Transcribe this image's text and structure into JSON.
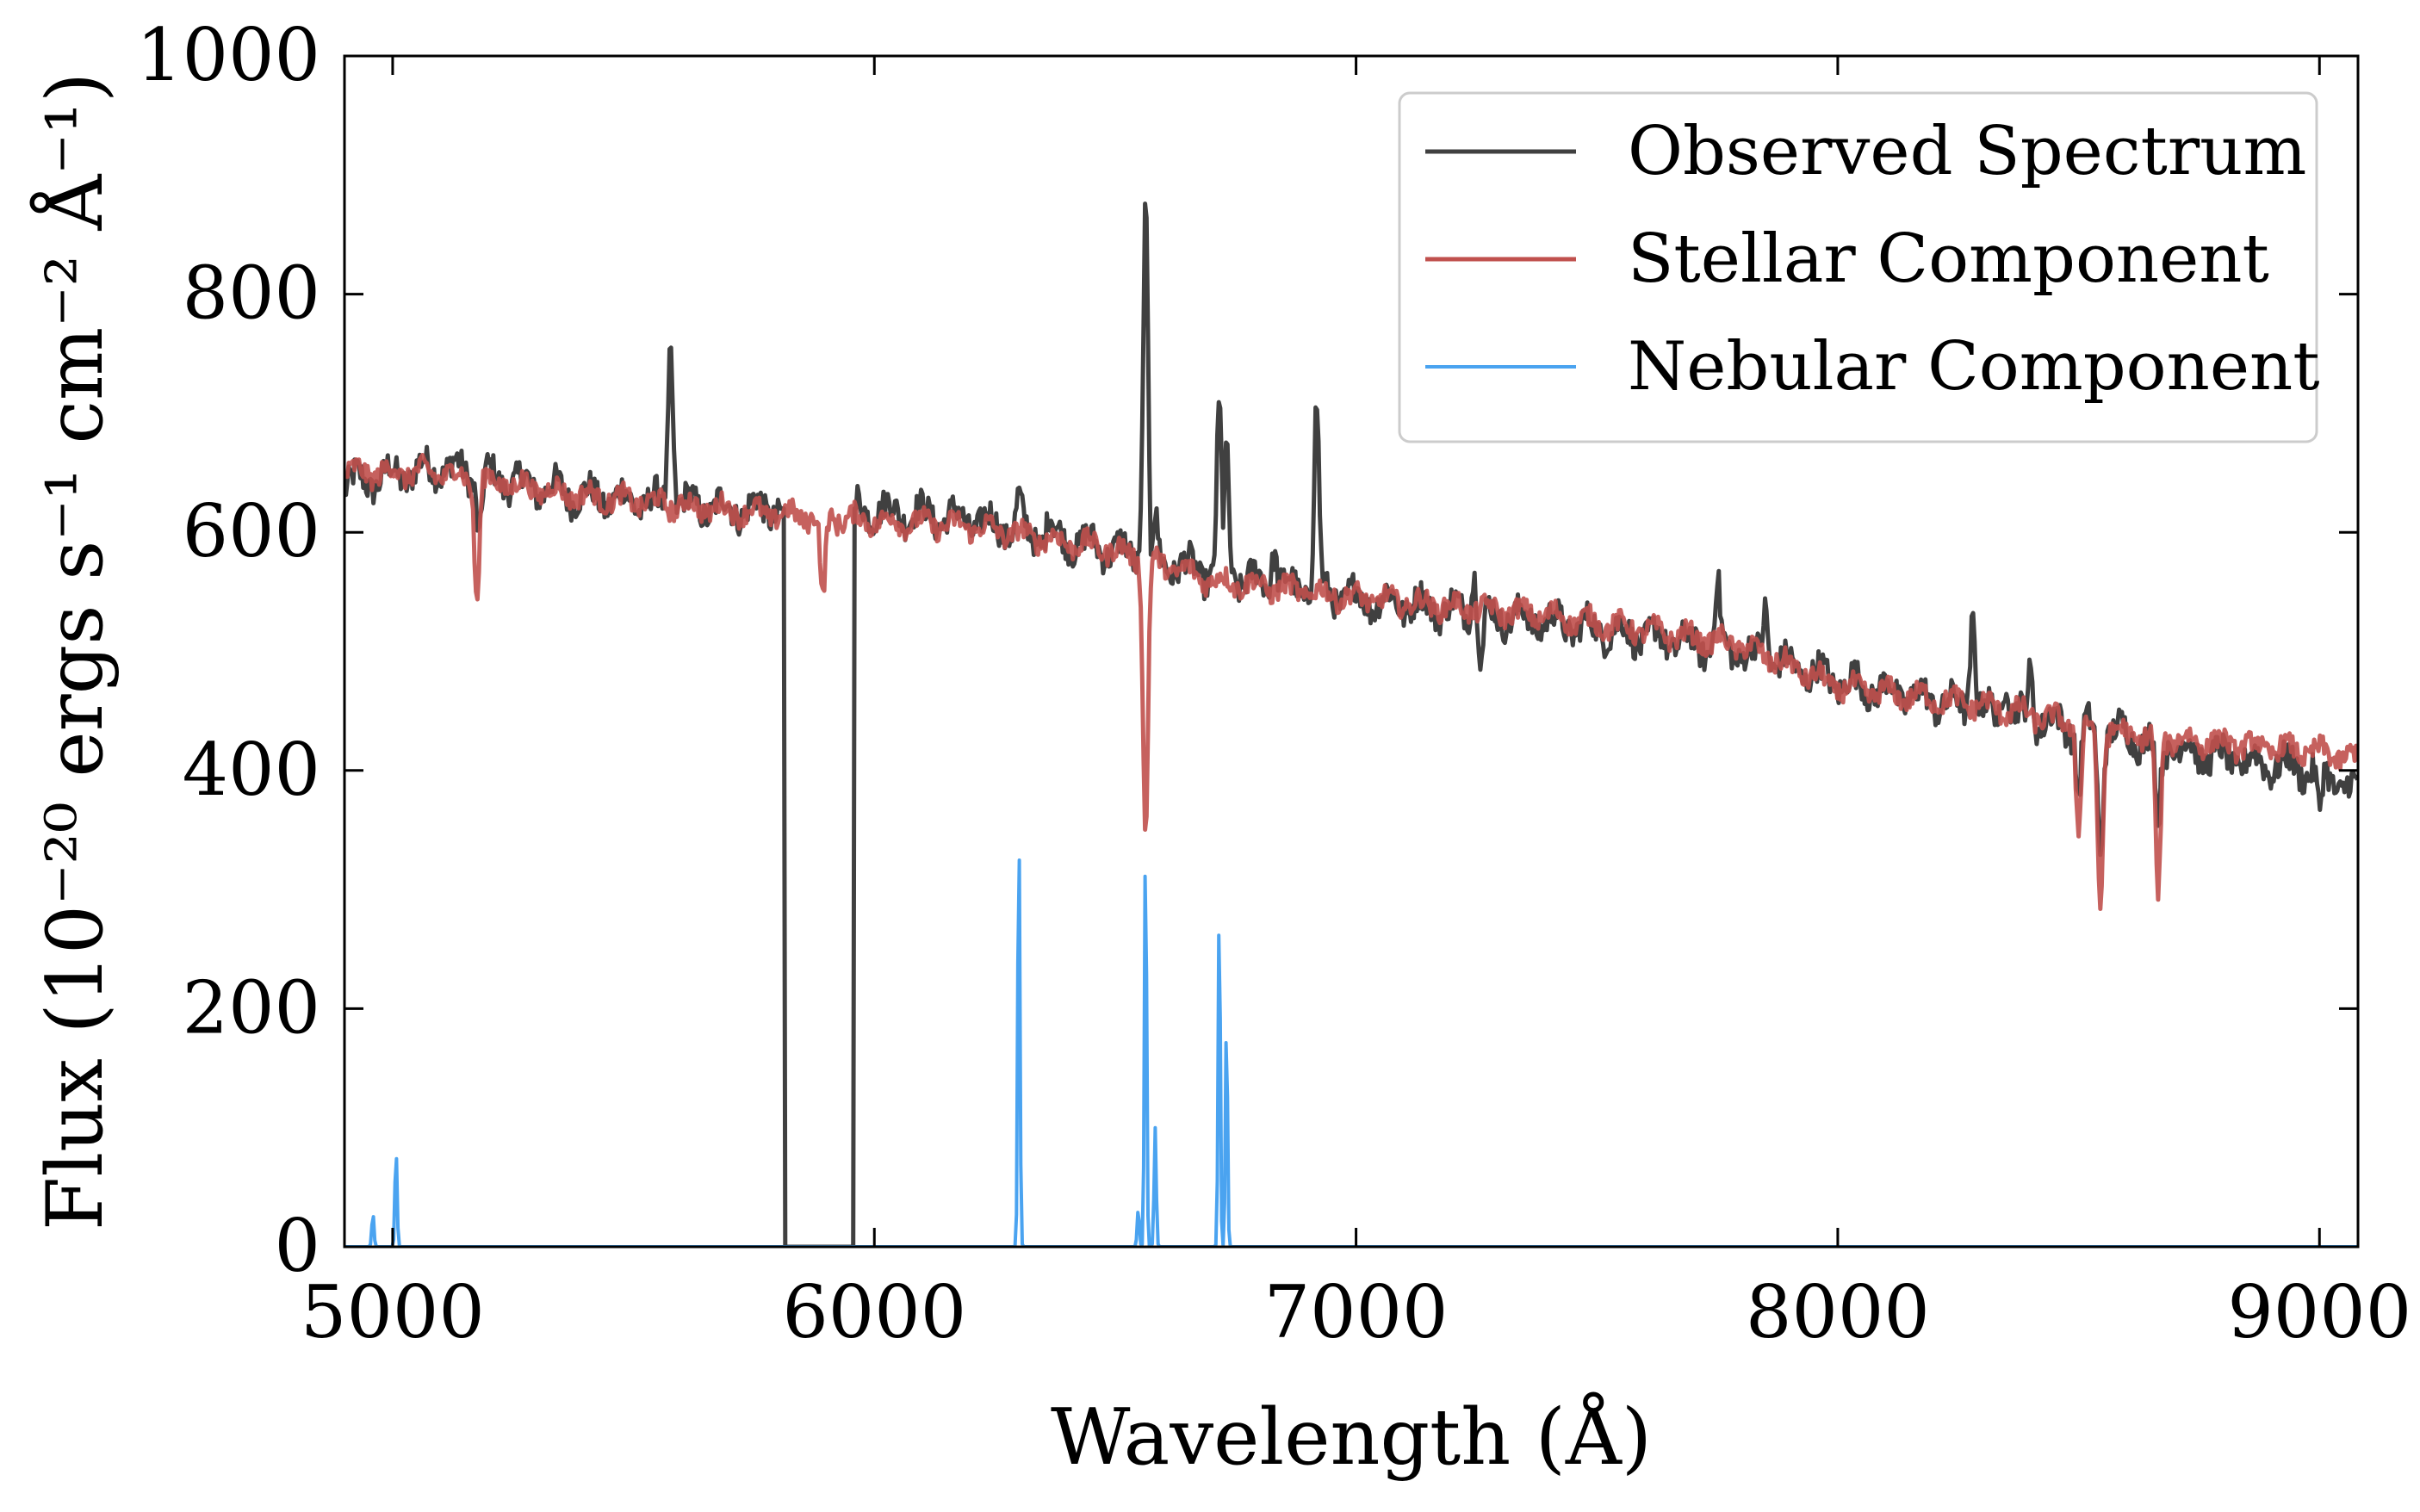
{
  "chart_data": {
    "type": "line",
    "title": "",
    "xlabel": "Wavelength (Å)",
    "ylabel": "Flux (10⁻²⁰ ergs s⁻¹ cm⁻² Å⁻¹)",
    "xlim": [
      4900,
      9080
    ],
    "ylim": [
      0,
      1000
    ],
    "xticks": [
      5000,
      6000,
      7000,
      8000,
      9000
    ],
    "xtick_labels": [
      "5000",
      "6000",
      "7000",
      "8000",
      "9000"
    ],
    "yticks": [
      0,
      200,
      400,
      600,
      800,
      1000
    ],
    "ytick_labels": [
      "0",
      "200",
      "400",
      "600",
      "800",
      "1000"
    ],
    "grid": false,
    "legend_position": "top-right",
    "series": [
      {
        "name": "Observed Spectrum",
        "color": "#404040",
        "continuum": [
          [
            4900,
            640
          ],
          [
            5100,
            655
          ],
          [
            5400,
            630
          ],
          [
            5700,
            620
          ],
          [
            5780,
            620
          ],
          [
            5975,
            620
          ],
          [
            6200,
            610
          ],
          [
            6500,
            585
          ],
          [
            6700,
            565
          ],
          [
            7000,
            545
          ],
          [
            7400,
            525
          ],
          [
            7800,
            500
          ],
          [
            8000,
            475
          ],
          [
            8300,
            450
          ],
          [
            8600,
            430
          ],
          [
            8800,
            410
          ],
          [
            9000,
            400
          ],
          [
            9080,
            380
          ]
        ],
        "gap": [
          5810,
          5960
        ],
        "emission_lines": [
          {
            "wavelength": 5577,
            "peak": 760
          },
          {
            "wavelength": 6300,
            "peak": 625
          },
          {
            "wavelength": 6363,
            "peak": 610
          },
          {
            "wavelength": 6563,
            "peak": 875
          },
          {
            "wavelength": 6583,
            "peak": 605
          },
          {
            "wavelength": 6716,
            "peak": 700
          },
          {
            "wavelength": 6731,
            "peak": 665
          },
          {
            "wavelength": 6830,
            "peak": 590
          },
          {
            "wavelength": 6918,
            "peak": 705
          },
          {
            "wavelength": 7245,
            "peak": 570
          },
          {
            "wavelength": 7750,
            "peak": 555
          },
          {
            "wavelength": 7850,
            "peak": 540
          },
          {
            "wavelength": 8280,
            "peak": 535
          },
          {
            "wavelength": 8350,
            "peak": 485
          },
          {
            "wavelength": 8400,
            "peak": 485
          }
        ],
        "absorption_lines": [
          {
            "wavelength": 5180,
            "depth": 600
          },
          {
            "wavelength": 7260,
            "depth": 490
          },
          {
            "wavelength": 8500,
            "depth": 380
          },
          {
            "wavelength": 8545,
            "depth": 330
          },
          {
            "wavelength": 8665,
            "depth": 350
          },
          {
            "wavelength": 9000,
            "depth": 360
          }
        ]
      },
      {
        "name": "Stellar Component",
        "color": "#c0504d",
        "continuum": [
          [
            4900,
            650
          ],
          [
            5100,
            650
          ],
          [
            5400,
            630
          ],
          [
            5800,
            615
          ],
          [
            6200,
            605
          ],
          [
            6500,
            585
          ],
          [
            6700,
            560
          ],
          [
            7000,
            545
          ],
          [
            7400,
            530
          ],
          [
            7800,
            505
          ],
          [
            8000,
            470
          ],
          [
            8300,
            455
          ],
          [
            8600,
            430
          ],
          [
            9000,
            415
          ],
          [
            9080,
            410
          ]
        ],
        "absorption_lines": [
          {
            "wavelength": 5175,
            "depth": 545
          },
          {
            "wavelength": 5893,
            "depth": 540
          },
          {
            "wavelength": 6563,
            "depth": 345
          },
          {
            "wavelength": 8500,
            "depth": 350
          },
          {
            "wavelength": 8545,
            "depth": 280
          },
          {
            "wavelength": 8665,
            "depth": 290
          }
        ]
      },
      {
        "name": "Nebular Component",
        "color": "#4aa3f0",
        "baseline": 0,
        "emission_lines": [
          {
            "wavelength": 4959,
            "peak": 28
          },
          {
            "wavelength": 5007,
            "peak": 82
          },
          {
            "wavelength": 6300,
            "peak": 360
          },
          {
            "wavelength": 6548,
            "peak": 32
          },
          {
            "wavelength": 6563,
            "peak": 345
          },
          {
            "wavelength": 6583,
            "peak": 100
          },
          {
            "wavelength": 6716,
            "peak": 290
          },
          {
            "wavelength": 6731,
            "peak": 190
          }
        ]
      }
    ]
  }
}
